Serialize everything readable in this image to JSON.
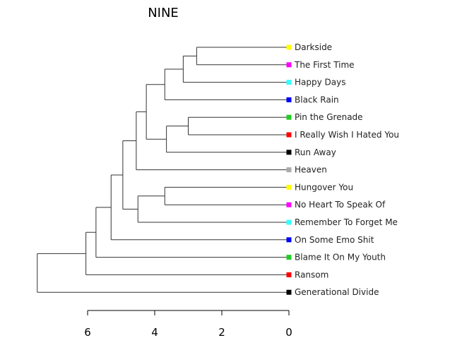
{
  "title": "NINE",
  "chart_data": {
    "type": "dendrogram",
    "title": "NINE",
    "orientation": "horizontal",
    "axis": {
      "ticks": [
        6,
        4,
        2,
        0
      ],
      "xlim": [
        6,
        0
      ]
    },
    "leaves": [
      {
        "label": "Darkside",
        "color": "#ffff00"
      },
      {
        "label": "The First Time",
        "color": "#ff00ff"
      },
      {
        "label": "Happy Days",
        "color": "#33ffff"
      },
      {
        "label": "Black Rain",
        "color": "#0000ff"
      },
      {
        "label": "Pin the Grenade",
        "color": "#22cc22"
      },
      {
        "label": "I Really Wish I Hated You",
        "color": "#ff0000"
      },
      {
        "label": "Run Away",
        "color": "#000000"
      },
      {
        "label": "Heaven",
        "color": "#aaaaaa"
      },
      {
        "label": "Hungover You",
        "color": "#ffff00"
      },
      {
        "label": "No Heart To Speak Of",
        "color": "#ff00ff"
      },
      {
        "label": "Remember To Forget Me",
        "color": "#33ffff"
      },
      {
        "label": "On Some Emo Shit",
        "color": "#0000ff"
      },
      {
        "label": "Blame It On My Youth",
        "color": "#22cc22"
      },
      {
        "label": "Ransom",
        "color": "#ff0000"
      },
      {
        "label": "Generational Divide",
        "color": "#000000"
      }
    ],
    "merges": [
      {
        "id": "n1",
        "height": 2.75,
        "children": [
          "Darkside",
          "The First Time"
        ]
      },
      {
        "id": "n2",
        "height": 3.15,
        "children": [
          "n1",
          "Happy Days"
        ]
      },
      {
        "id": "n3",
        "height": 3.7,
        "children": [
          "n2",
          "Black Rain"
        ]
      },
      {
        "id": "n4",
        "height": 3.0,
        "children": [
          "Pin the Grenade",
          "I Really Wish I Hated You"
        ]
      },
      {
        "id": "n5",
        "height": 3.65,
        "children": [
          "n4",
          "Run Away"
        ]
      },
      {
        "id": "n6",
        "height": 4.25,
        "children": [
          "n3",
          "n5"
        ]
      },
      {
        "id": "n7",
        "height": 4.55,
        "children": [
          "n6",
          "Heaven"
        ]
      },
      {
        "id": "n8",
        "height": 3.7,
        "children": [
          "Hungover You",
          "No Heart To Speak Of"
        ]
      },
      {
        "id": "n9",
        "height": 4.5,
        "children": [
          "n8",
          "Remember To Forget Me"
        ]
      },
      {
        "id": "n10",
        "height": 4.95,
        "children": [
          "n7",
          "n9"
        ]
      },
      {
        "id": "n11",
        "height": 5.3,
        "children": [
          "n10",
          "On Some Emo Shit"
        ]
      },
      {
        "id": "n12",
        "height": 5.75,
        "children": [
          "n11",
          "Blame It On My Youth"
        ]
      },
      {
        "id": "n13",
        "height": 6.05,
        "children": [
          "n12",
          "Ransom"
        ]
      },
      {
        "id": "n14",
        "height": 7.5,
        "children": [
          "n13",
          "Generational Divide"
        ]
      }
    ]
  }
}
